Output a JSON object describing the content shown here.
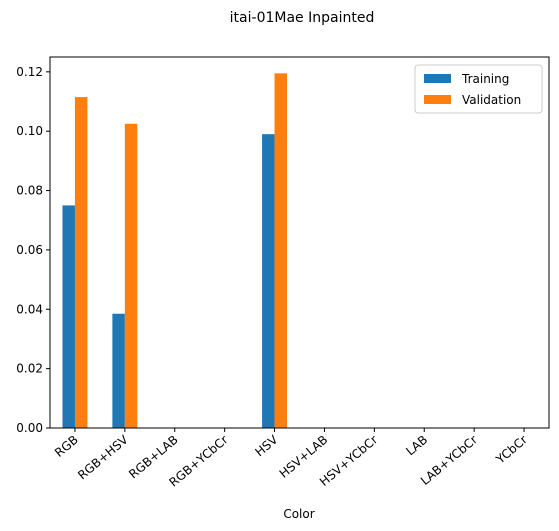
{
  "chart_data": {
    "type": "bar",
    "title": "itai-01Mae Inpainted",
    "xlabel": "Color",
    "ylabel": "",
    "ylim": [
      0,
      0.125
    ],
    "yticks": [
      0.0,
      0.02,
      0.04,
      0.06,
      0.08,
      0.1,
      0.12
    ],
    "ytick_labels": [
      "0.00",
      "0.02",
      "0.04",
      "0.06",
      "0.08",
      "0.10",
      "0.12"
    ],
    "categories": [
      "RGB",
      "RGB+HSV",
      "RGB+LAB",
      "RGB+YCbCr",
      "HSV",
      "HSV+LAB",
      "HSV+YCbCr",
      "LAB",
      "LAB+YCbCr",
      "YCbCr"
    ],
    "series": [
      {
        "name": "Training",
        "color": "#1f77b4",
        "values": [
          0.075,
          0.0385,
          0,
          0,
          0.099,
          0,
          0,
          0,
          0,
          0
        ]
      },
      {
        "name": "Validation",
        "color": "#ff7f0e",
        "values": [
          0.1115,
          0.1025,
          0,
          0,
          0.1195,
          0,
          0,
          0,
          0,
          0
        ]
      }
    ],
    "legend_position": "top-right",
    "grid": false
  }
}
